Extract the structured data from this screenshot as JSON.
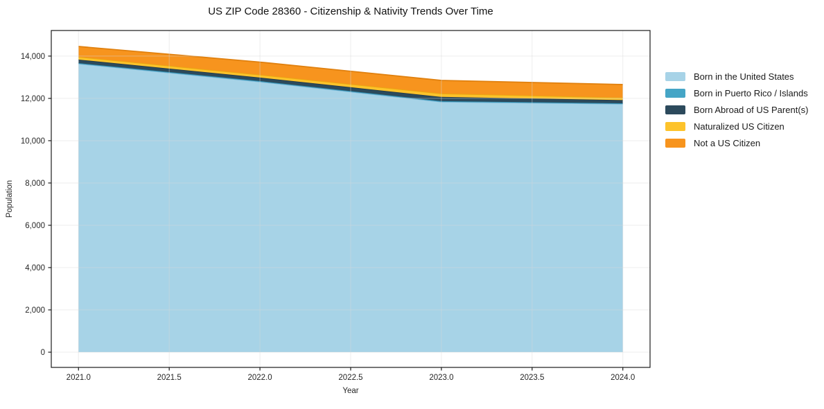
{
  "chart_data": {
    "type": "area",
    "stacked": true,
    "title": "US ZIP Code 28360 - Citizenship & Nativity Trends Over Time",
    "xlabel": "Year",
    "ylabel": "Population",
    "x": [
      2021,
      2022,
      2023,
      2024
    ],
    "series": [
      {
        "name": "Born in the United States",
        "color": "#a7d3e7",
        "edge_color": "#7ab7d8",
        "values": [
          13640,
          12790,
          11840,
          11740
        ]
      },
      {
        "name": "Born in Puerto Rico / Islands",
        "color": "#45a5c6",
        "edge_color": "#2f8fb0",
        "values": [
          30,
          30,
          30,
          30
        ]
      },
      {
        "name": "Born Abroad of US Parent(s)",
        "color": "#2c4a5c",
        "edge_color": "#22394a",
        "values": [
          165,
          165,
          200,
          150
        ]
      },
      {
        "name": "Naturalized US Citizen",
        "color": "#fdc32b",
        "edge_color": "#e9a90f",
        "values": [
          130,
          130,
          160,
          115
        ]
      },
      {
        "name": "Not a US Citizen",
        "color": "#f7941e",
        "edge_color": "#e0800e",
        "values": [
          490,
          600,
          620,
          620
        ]
      }
    ],
    "xticks": [
      2021.0,
      2021.5,
      2022.0,
      2022.5,
      2023.0,
      2023.5,
      2024.0
    ],
    "xtick_labels": [
      "2021.0",
      "2021.5",
      "2022.0",
      "2022.5",
      "2023.0",
      "2023.5",
      "2024.0"
    ],
    "yticks": [
      0,
      2000,
      4000,
      6000,
      8000,
      10000,
      12000,
      14000
    ],
    "ytick_labels": [
      "0",
      "2,000",
      "4,000",
      "6,000",
      "8,000",
      "10,000",
      "12,000",
      "14,000"
    ],
    "xlim": [
      2020.85,
      2024.15
    ],
    "ylim": [
      -720,
      15210
    ],
    "grid": true,
    "legend_position": "right-outside",
    "spine_color": "#1a1a1a",
    "grid_color": "#d8d8d8",
    "tick_label_color": "#262626"
  }
}
